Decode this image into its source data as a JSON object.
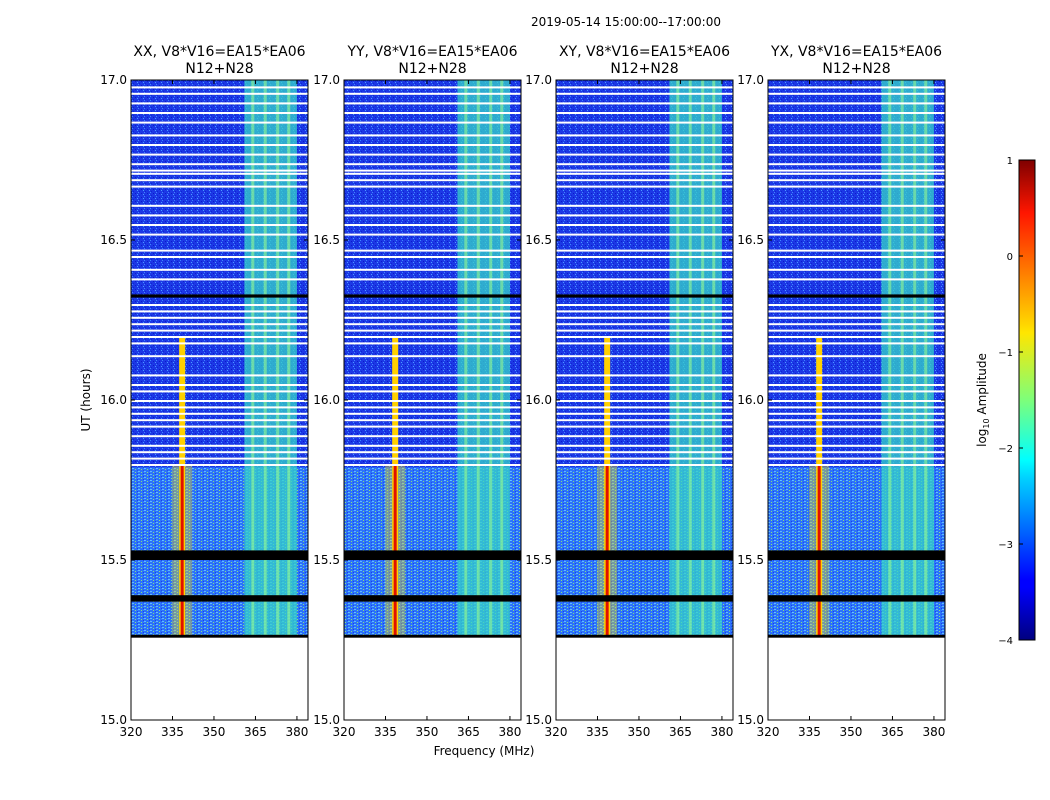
{
  "figure": {
    "suptitle": "2019-05-14  15:00:00--17:00:00",
    "xlabel": "Frequency (MHz)",
    "ylabel": "UT (hours)",
    "colorbar_label": "log",
    "colorbar_label_sub": "10",
    "colorbar_label_rest": " Amplitude"
  },
  "chart_data": {
    "type": "heatmap",
    "title": "2019-05-14  15:00:00--17:00:00",
    "xlabel": "Frequency (MHz)",
    "ylabel": "UT (hours)",
    "xlim": [
      320,
      384
    ],
    "ylim": [
      15.0,
      17.0
    ],
    "x_ticks": [
      320,
      335,
      350,
      365,
      380
    ],
    "y_ticks": [
      15.0,
      15.5,
      16.0,
      16.5,
      17.0
    ],
    "panels": [
      {
        "title_line1": "XX, V8*V16=EA15*EA06",
        "title_line2": "N12+N28"
      },
      {
        "title_line1": "YY, V8*V16=EA15*EA06",
        "title_line2": "N12+N28"
      },
      {
        "title_line1": "XY, V8*V16=EA15*EA06",
        "title_line2": "N12+N28"
      },
      {
        "title_line1": "YX, V8*V16=EA15*EA06",
        "title_line2": "N12+N28"
      }
    ],
    "colorbar": {
      "label": "log10 Amplitude",
      "range": [
        -4,
        1
      ],
      "ticks": [
        1,
        0,
        -1,
        -2,
        -3,
        -4
      ],
      "tick_labels": [
        "1",
        "0",
        "−1",
        "−2",
        "−3",
        "−4"
      ],
      "colormap": "jet"
    },
    "features": {
      "data_start_ut": 15.26,
      "rfi_line_mhz": 338.5,
      "broadband_band_mhz": [
        361,
        380
      ],
      "blank_rows_ut": [
        [
          15.5,
          15.53
        ],
        [
          15.37,
          15.39
        ],
        [
          16.32,
          16.33
        ]
      ]
    }
  }
}
